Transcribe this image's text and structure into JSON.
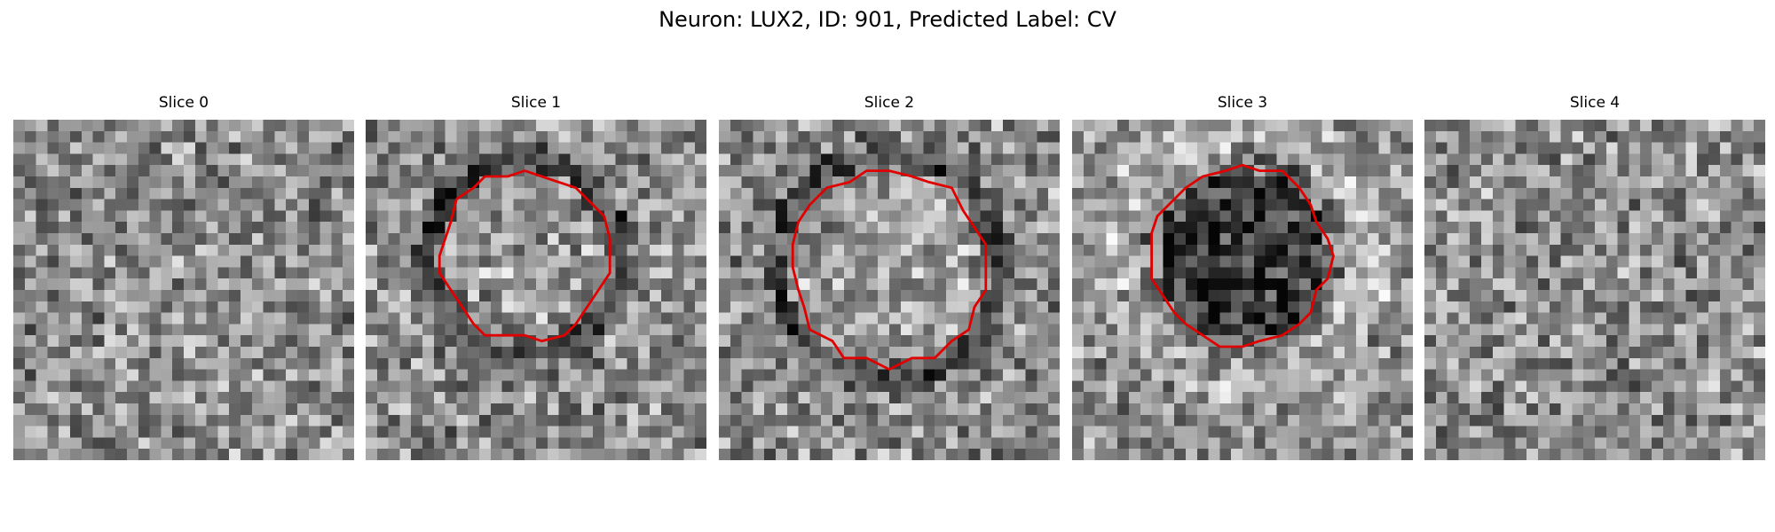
{
  "figure": {
    "title": "Neuron: LUX2, ID: 901, Predicted Label: CV",
    "contour_color": "#e00000",
    "colormap": "grayscale",
    "panels": [
      {
        "title": "Slice 0",
        "feature": "none",
        "has_contour": false
      },
      {
        "title": "Slice 1",
        "feature": "dark ring around lighter interior",
        "has_contour": true
      },
      {
        "title": "Slice 2",
        "feature": "dark ring around lighter interior",
        "has_contour": true
      },
      {
        "title": "Slice 3",
        "feature": "dark filled interior",
        "has_contour": true
      },
      {
        "title": "Slice 4",
        "feature": "none",
        "has_contour": false
      }
    ]
  }
}
